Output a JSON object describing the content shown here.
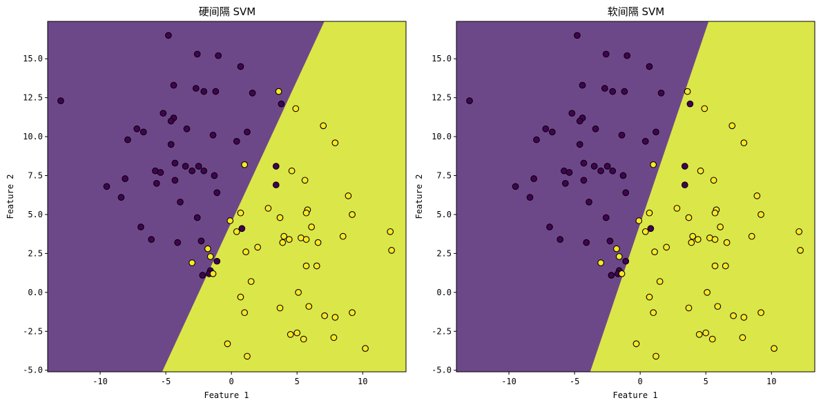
{
  "colors": {
    "class0": "#440154",
    "class1": "#fde725",
    "region0": "#6d4889",
    "region1": "#dbe649",
    "edge": "#000000"
  },
  "chart_data": [
    {
      "type": "scatter",
      "title": "硬间隔 SVM",
      "xlabel": "Feature 1",
      "ylabel": "Feature 2",
      "xlim": [
        -14.0,
        13.3
      ],
      "ylim": [
        -5.1,
        17.4
      ],
      "xticks": [
        -10,
        -5,
        0,
        5,
        10
      ],
      "yticks": [
        -5.0,
        -2.5,
        0.0,
        2.5,
        5.0,
        7.5,
        10.0,
        12.5,
        15.0
      ],
      "decision_boundary": {
        "x_at_ylow": -5.4,
        "x_at_yhigh": 7.2
      },
      "grid": false
    },
    {
      "type": "scatter",
      "title": "软间隔 SVM",
      "xlabel": "Feature 1",
      "ylabel": "Feature 2",
      "xlim": [
        -14.0,
        13.3
      ],
      "ylim": [
        -5.1,
        17.4
      ],
      "xticks": [
        -10,
        -5,
        0,
        5,
        10
      ],
      "yticks": [
        -5.0,
        -2.5,
        0.0,
        2.5,
        5.0,
        7.5,
        10.0,
        12.5,
        15.0
      ],
      "decision_boundary": {
        "x_at_ylow": -3.9,
        "x_at_yhigh": 5.3
      },
      "grid": false
    }
  ],
  "points": {
    "class0": [
      [
        -13.0,
        12.3
      ],
      [
        -4.8,
        16.5
      ],
      [
        -2.6,
        15.3
      ],
      [
        -1.0,
        15.2
      ],
      [
        0.7,
        14.5
      ],
      [
        -4.4,
        13.3
      ],
      [
        -2.7,
        13.1
      ],
      [
        -2.1,
        12.9
      ],
      [
        -1.2,
        12.9
      ],
      [
        1.6,
        12.8
      ],
      [
        3.8,
        12.1
      ],
      [
        -5.2,
        11.5
      ],
      [
        -4.4,
        11.2
      ],
      [
        -4.6,
        11.0
      ],
      [
        -7.2,
        10.5
      ],
      [
        -3.4,
        10.5
      ],
      [
        1.2,
        10.3
      ],
      [
        -6.7,
        10.3
      ],
      [
        -1.4,
        10.1
      ],
      [
        -7.9,
        9.8
      ],
      [
        0.4,
        9.7
      ],
      [
        -4.6,
        9.5
      ],
      [
        -4.3,
        8.3
      ],
      [
        -3.5,
        8.1
      ],
      [
        -2.5,
        8.1
      ],
      [
        -2.1,
        7.8
      ],
      [
        -3.0,
        7.8
      ],
      [
        -5.8,
        7.8
      ],
      [
        -5.4,
        7.7
      ],
      [
        -1.3,
        7.5
      ],
      [
        -8.1,
        7.3
      ],
      [
        -4.3,
        7.2
      ],
      [
        -5.7,
        7.0
      ],
      [
        -9.5,
        6.8
      ],
      [
        -1.1,
        6.4
      ],
      [
        -8.4,
        6.1
      ],
      [
        -3.9,
        5.8
      ],
      [
        -2.6,
        4.8
      ],
      [
        -6.9,
        4.2
      ],
      [
        0.8,
        4.1
      ],
      [
        -6.1,
        3.4
      ],
      [
        -2.3,
        3.3
      ],
      [
        -4.1,
        3.2
      ],
      [
        -1.1,
        2.0
      ],
      [
        -1.6,
        1.4
      ],
      [
        -2.2,
        1.1
      ],
      [
        -1.7,
        1.2
      ],
      [
        3.4,
        8.1
      ],
      [
        3.4,
        6.9
      ]
    ],
    "class1": [
      [
        3.6,
        12.9
      ],
      [
        4.9,
        11.8
      ],
      [
        7.0,
        10.7
      ],
      [
        7.9,
        9.6
      ],
      [
        1.0,
        8.2
      ],
      [
        4.6,
        7.8
      ],
      [
        5.6,
        7.2
      ],
      [
        8.9,
        6.2
      ],
      [
        2.8,
        5.4
      ],
      [
        5.8,
        5.3
      ],
      [
        5.7,
        5.1
      ],
      [
        0.7,
        5.1
      ],
      [
        9.2,
        5.0
      ],
      [
        3.7,
        4.8
      ],
      [
        -0.1,
        4.6
      ],
      [
        6.1,
        4.2
      ],
      [
        0.4,
        3.9
      ],
      [
        12.1,
        3.9
      ],
      [
        8.5,
        3.6
      ],
      [
        4.0,
        3.6
      ],
      [
        5.3,
        3.5
      ],
      [
        4.4,
        3.4
      ],
      [
        5.7,
        3.4
      ],
      [
        3.9,
        3.2
      ],
      [
        6.6,
        3.2
      ],
      [
        2.0,
        2.9
      ],
      [
        -1.8,
        2.8
      ],
      [
        12.2,
        2.7
      ],
      [
        1.1,
        2.6
      ],
      [
        -1.6,
        2.3
      ],
      [
        -3.0,
        1.9
      ],
      [
        5.7,
        1.7
      ],
      [
        6.5,
        1.7
      ],
      [
        1.5,
        0.7
      ],
      [
        5.1,
        0.0
      ],
      [
        0.7,
        -0.3
      ],
      [
        5.9,
        -0.9
      ],
      [
        3.7,
        -1.0
      ],
      [
        1.0,
        -1.3
      ],
      [
        9.2,
        -1.3
      ],
      [
        7.1,
        -1.5
      ],
      [
        7.9,
        -1.6
      ],
      [
        5.0,
        -2.6
      ],
      [
        4.5,
        -2.7
      ],
      [
        7.8,
        -2.9
      ],
      [
        5.5,
        -3.0
      ],
      [
        -0.3,
        -3.3
      ],
      [
        10.2,
        -3.6
      ],
      [
        1.2,
        -4.1
      ],
      [
        -1.4,
        1.2
      ]
    ]
  },
  "panel_overrides": {
    "1": {
      "swap_to_class1": [
        [
          1.0,
          8.2
        ]
      ],
      "swap_to_class0": []
    }
  }
}
